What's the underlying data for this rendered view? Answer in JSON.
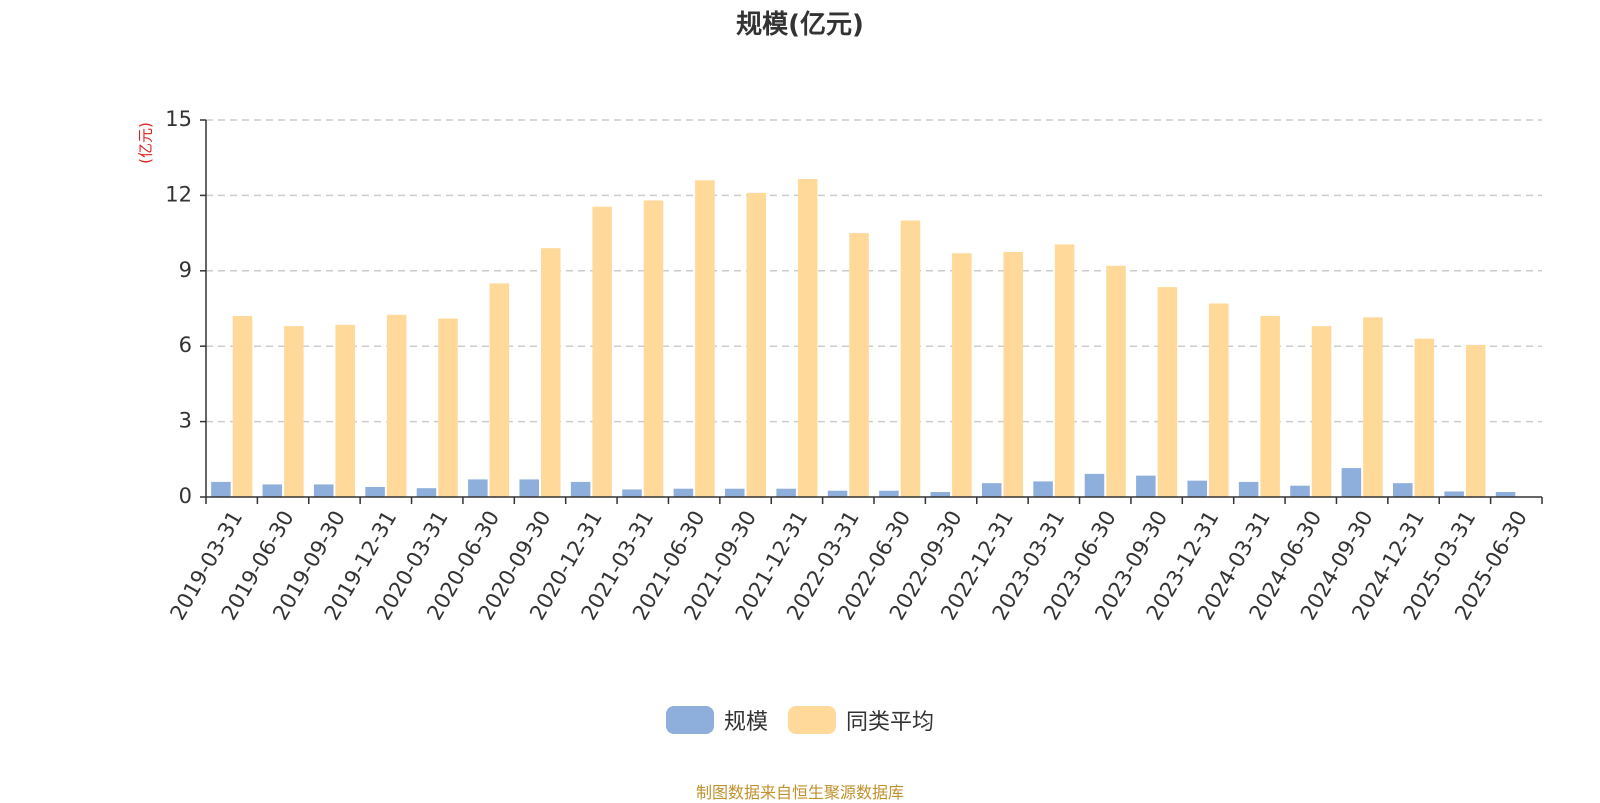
{
  "chart_data": {
    "type": "bar",
    "title": "规模(亿元)",
    "ylabel": "(亿元)",
    "ylim": [
      0,
      15
    ],
    "yticks": [
      0,
      3,
      6,
      9,
      12,
      15
    ],
    "grid": true,
    "legend_position": "bottom-center",
    "categories": [
      "2019-03-31",
      "2019-06-30",
      "2019-09-30",
      "2019-12-31",
      "2020-03-31",
      "2020-06-30",
      "2020-09-30",
      "2020-12-31",
      "2021-03-31",
      "2021-06-30",
      "2021-09-30",
      "2021-12-31",
      "2022-03-31",
      "2022-06-30",
      "2022-09-30",
      "2022-12-31",
      "2023-03-31",
      "2023-06-30",
      "2023-09-30",
      "2023-12-31",
      "2024-03-31",
      "2024-06-30",
      "2024-09-30",
      "2024-12-31",
      "2025-03-31",
      "2025-06-30"
    ],
    "series": [
      {
        "name": "规模",
        "color": "#8eaedc",
        "values": [
          0.6,
          0.5,
          0.5,
          0.4,
          0.35,
          0.7,
          0.7,
          0.6,
          0.3,
          0.33,
          0.33,
          0.33,
          0.25,
          0.25,
          0.2,
          0.55,
          0.62,
          0.92,
          0.85,
          0.65,
          0.6,
          0.45,
          1.15,
          0.55,
          0.22,
          0.2
        ]
      },
      {
        "name": "同类平均",
        "color": "#ffd99a",
        "values": [
          7.2,
          6.8,
          6.85,
          7.25,
          7.1,
          8.5,
          9.9,
          11.55,
          11.8,
          12.6,
          12.1,
          12.65,
          10.5,
          11.0,
          9.7,
          9.75,
          10.05,
          9.2,
          8.35,
          7.7,
          7.2,
          6.8,
          7.15,
          6.3,
          6.05,
          null
        ]
      }
    ]
  },
  "source_note": "制图数据来自恒生聚源数据库"
}
